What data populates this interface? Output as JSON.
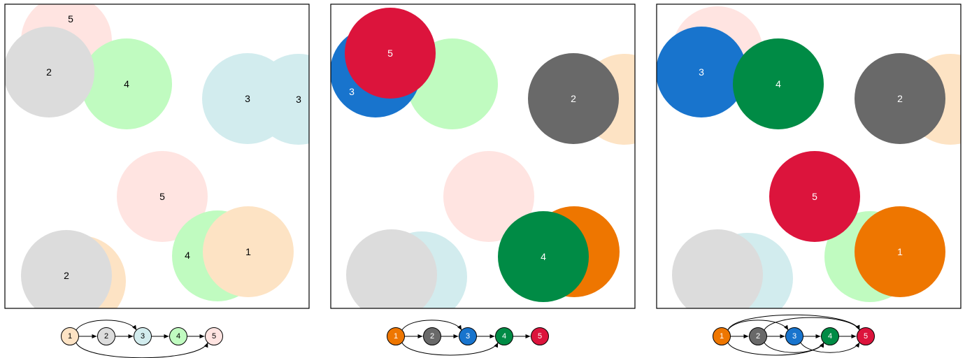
{
  "panels": [
    {
      "circles": [
        {
          "label": "5",
          "color": "#ffe4e1",
          "state": "faded",
          "text_color": "#000000"
        },
        {
          "label": "3",
          "color": "#d2ecee",
          "state": "faded",
          "text_color": "#000000"
        },
        {
          "label": "4",
          "color": "#c0fbc0",
          "state": "faded",
          "text_color": "#000000"
        },
        {
          "label": "1",
          "color": "#fde3c4",
          "state": "faded",
          "text_color": "#000000"
        },
        {
          "label": "2",
          "color": "#dcdcdc",
          "state": "faded",
          "text_color": "#000000"
        },
        {
          "label": "5",
          "color": "#ffe4e1",
          "state": "faded",
          "text_color": "#000000"
        },
        {
          "label": "3",
          "color": "#d2ecee",
          "state": "faded",
          "text_color": "#000000"
        },
        {
          "label": "2",
          "color": "#dcdcdc",
          "state": "faded",
          "text_color": "#000000"
        },
        {
          "label": "4",
          "color": "#c0fbc0",
          "state": "faded",
          "text_color": "#000000"
        },
        {
          "label": "1",
          "color": "#fde3c4",
          "state": "faded",
          "text_color": "#000000"
        }
      ],
      "graph": {
        "nodes": [
          {
            "label": "1",
            "color": "#fde3c4",
            "text_color": "#000000"
          },
          {
            "label": "2",
            "color": "#dcdcdc",
            "text_color": "#000000"
          },
          {
            "label": "3",
            "color": "#d2ecee",
            "text_color": "#000000"
          },
          {
            "label": "4",
            "color": "#c0fbc0",
            "text_color": "#000000"
          },
          {
            "label": "5",
            "color": "#ffe4e1",
            "text_color": "#000000"
          }
        ],
        "edges": [
          [
            1,
            2
          ],
          [
            2,
            3
          ],
          [
            3,
            4
          ],
          [
            4,
            5
          ],
          [
            1,
            3
          ],
          [
            1,
            5
          ]
        ]
      }
    },
    {
      "circles": [
        {
          "label": "",
          "color": "#c0fbc0",
          "state": "faded",
          "text_color": "#000000"
        },
        {
          "label": "",
          "color": "#fde3c4",
          "state": "faded",
          "text_color": "#000000"
        },
        {
          "label": "2",
          "color": "#696969",
          "state": "solid",
          "text_color": "#ffffff"
        },
        {
          "label": "",
          "color": "#ffe4e1",
          "state": "faded",
          "text_color": "#000000"
        },
        {
          "label": "",
          "color": "#d2ecee",
          "state": "faded",
          "text_color": "#000000"
        },
        {
          "label": "",
          "color": "#dcdcdc",
          "state": "faded",
          "text_color": "#000000"
        },
        {
          "label": "1",
          "color": "#ee7600",
          "state": "solid",
          "text_color": "#ffffff"
        },
        {
          "label": "4",
          "color": "#008b45",
          "state": "solid",
          "text_color": "#ffffff"
        },
        {
          "label": "3",
          "color": "#1874cd",
          "state": "solid",
          "text_color": "#ffffff"
        },
        {
          "label": "5",
          "color": "#dc143c",
          "state": "solid",
          "text_color": "#ffffff"
        }
      ],
      "graph": {
        "nodes": [
          {
            "label": "1",
            "color": "#ee7600",
            "text_color": "#ffffff"
          },
          {
            "label": "2",
            "color": "#696969",
            "text_color": "#ffffff"
          },
          {
            "label": "3",
            "color": "#1874cd",
            "text_color": "#ffffff"
          },
          {
            "label": "4",
            "color": "#008b45",
            "text_color": "#ffffff"
          },
          {
            "label": "5",
            "color": "#dc143c",
            "text_color": "#ffffff"
          }
        ],
        "edges": [
          [
            1,
            2
          ],
          [
            2,
            3
          ],
          [
            3,
            4
          ],
          [
            4,
            5
          ],
          [
            1,
            3
          ],
          [
            1,
            4
          ]
        ]
      }
    },
    {
      "circles": [
        {
          "label": "",
          "color": "#ffe4e1",
          "state": "faded",
          "text_color": "#000000"
        },
        {
          "label": "",
          "color": "#fde3c4",
          "state": "faded",
          "text_color": "#000000"
        },
        {
          "label": "",
          "color": "#d2ecee",
          "state": "faded",
          "text_color": "#000000"
        },
        {
          "label": "",
          "color": "#dcdcdc",
          "state": "faded",
          "text_color": "#000000"
        },
        {
          "label": "",
          "color": "#c0fbc0",
          "state": "faded",
          "text_color": "#000000"
        },
        {
          "label": "3",
          "color": "#1874cd",
          "state": "solid",
          "text_color": "#ffffff"
        },
        {
          "label": "4",
          "color": "#008b45",
          "state": "solid",
          "text_color": "#ffffff"
        },
        {
          "label": "2",
          "color": "#696969",
          "state": "solid",
          "text_color": "#ffffff"
        },
        {
          "label": "5",
          "color": "#dc143c",
          "state": "solid",
          "text_color": "#ffffff"
        },
        {
          "label": "1",
          "color": "#ee7600",
          "state": "solid",
          "text_color": "#ffffff"
        }
      ],
      "graph": {
        "nodes": [
          {
            "label": "1",
            "color": "#ee7600",
            "text_color": "#ffffff"
          },
          {
            "label": "2",
            "color": "#696969",
            "text_color": "#ffffff"
          },
          {
            "label": "3",
            "color": "#1874cd",
            "text_color": "#ffffff"
          },
          {
            "label": "4",
            "color": "#008b45",
            "text_color": "#ffffff"
          },
          {
            "label": "5",
            "color": "#dc143c",
            "text_color": "#ffffff"
          }
        ],
        "edges": [
          [
            1,
            2
          ],
          [
            2,
            3
          ],
          [
            3,
            4
          ],
          [
            4,
            5
          ],
          [
            1,
            3
          ],
          [
            1,
            4
          ],
          [
            1,
            5
          ],
          [
            2,
            4
          ],
          [
            2,
            5
          ],
          [
            3,
            5
          ]
        ]
      }
    }
  ]
}
